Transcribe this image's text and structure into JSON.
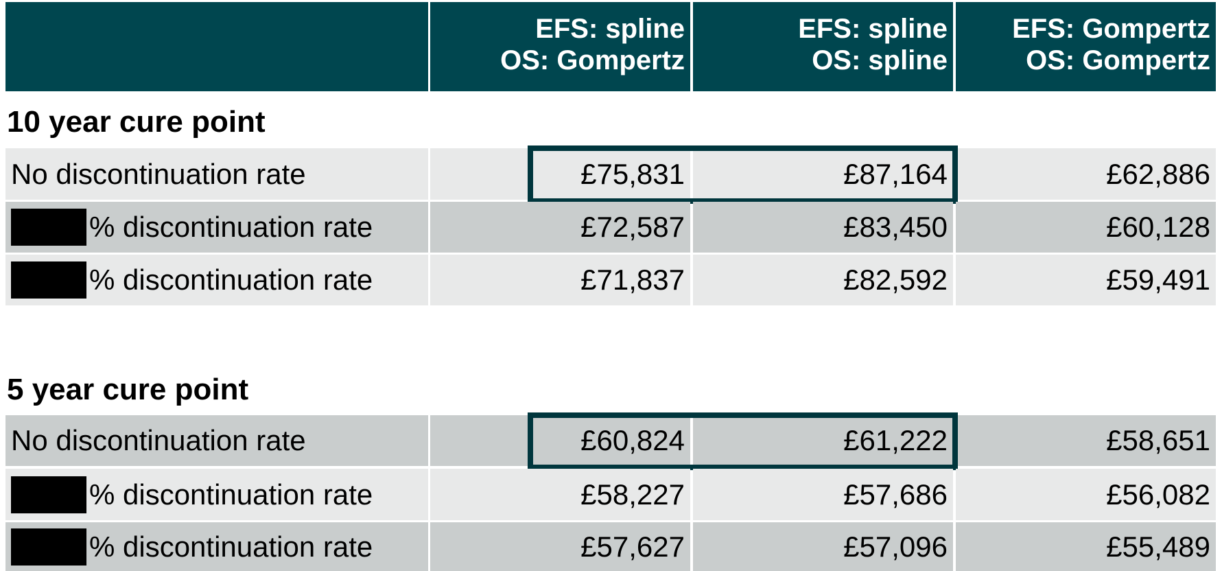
{
  "table": {
    "header": [
      [
        "EFS: spline",
        "OS: Gompertz"
      ],
      [
        "EFS: spline",
        "OS: spline"
      ],
      [
        "EFS: Gompertz",
        "OS: Gompertz"
      ]
    ],
    "sections": [
      {
        "title": "10 year cure point",
        "rows": [
          {
            "label": "No discontinuation rate",
            "values": [
              "£75,831",
              "£87,164",
              "£62,886"
            ],
            "highlighted": true
          },
          {
            "label": "% discontinuation rate",
            "redacted": true,
            "values": [
              "£72,587",
              "£83,450",
              "£60,128"
            ]
          },
          {
            "label": "% discontinuation rate",
            "redacted": true,
            "values": [
              "£71,837",
              "£82,592",
              "£59,491"
            ]
          }
        ]
      },
      {
        "title": "5 year cure point",
        "rows": [
          {
            "label": "No discontinuation rate",
            "values": [
              "£60,824",
              "£61,222",
              "£58,651"
            ],
            "highlighted": true
          },
          {
            "label": "% discontinuation rate",
            "redacted": true,
            "values": [
              "£58,227",
              "£57,686",
              "£56,082"
            ]
          },
          {
            "label": "% discontinuation rate",
            "redacted": true,
            "values": [
              "£57,627",
              "£57,096",
              "£55,489"
            ]
          }
        ]
      }
    ]
  }
}
